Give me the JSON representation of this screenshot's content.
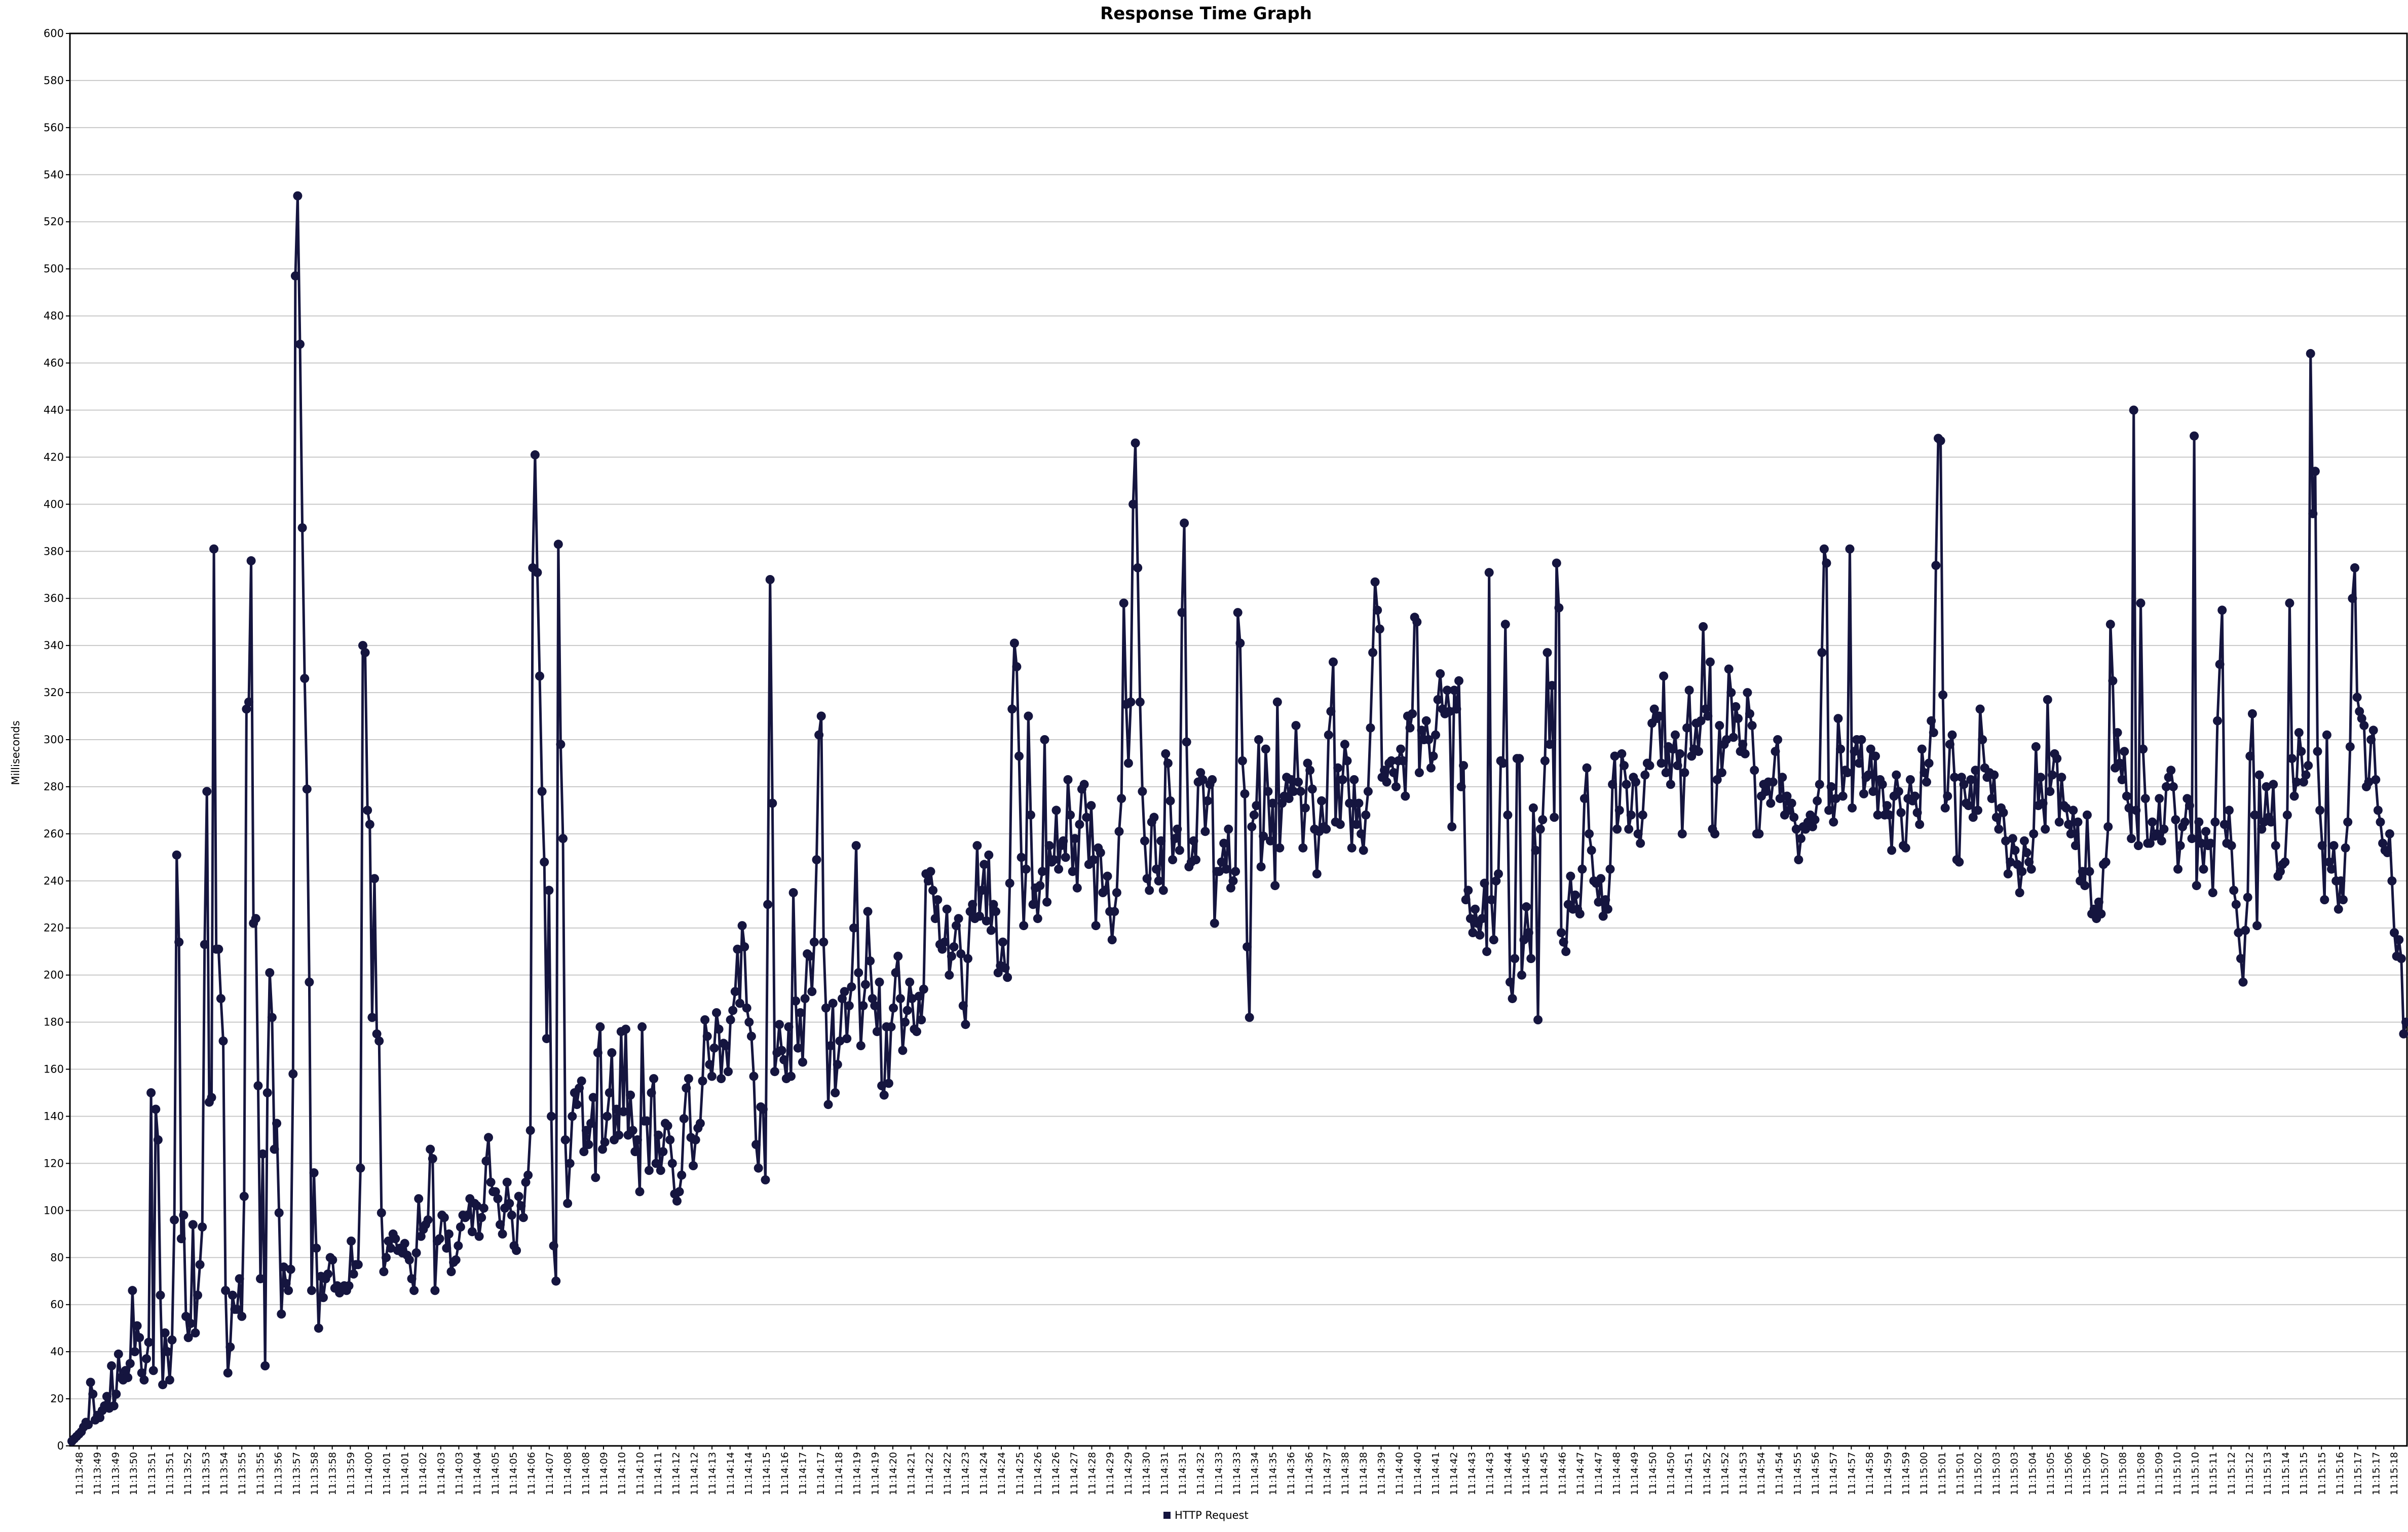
{
  "chart_data": {
    "type": "line",
    "title": "Response Time Graph",
    "ylabel": "Milliseconds",
    "xlabel": "",
    "ylim": [
      0,
      600
    ],
    "ytick_step": 20,
    "grid": true,
    "legend_position": "bottom-center",
    "series_color": "#15153f",
    "x_ticks": [
      "11:13:48",
      "11:13:49",
      "11:13:49",
      "11:13:50",
      "11:13:51",
      "11:13:51",
      "11:13:52",
      "11:13:53",
      "11:13:54",
      "11:13:55",
      "11:13:55",
      "11:13:56",
      "11:13:57",
      "11:13:58",
      "11:13:58",
      "11:13:59",
      "11:14:00",
      "11:14:01",
      "11:14:01",
      "11:14:02",
      "11:14:03",
      "11:14:03",
      "11:14:04",
      "11:14:05",
      "11:14:05",
      "11:14:06",
      "11:14:07",
      "11:14:08",
      "11:14:08",
      "11:14:09",
      "11:14:10",
      "11:14:10",
      "11:14:11",
      "11:14:12",
      "11:14:12",
      "11:14:13",
      "11:14:14",
      "11:14:14",
      "11:14:15",
      "11:14:16",
      "11:14:17",
      "11:14:17",
      "11:14:18",
      "11:14:19",
      "11:14:19",
      "11:14:20",
      "11:14:21",
      "11:14:22",
      "11:14:22",
      "11:14:23",
      "11:14:24",
      "11:14:24",
      "11:14:25",
      "11:14:26",
      "11:14:26",
      "11:14:27",
      "11:14:28",
      "11:14:29",
      "11:14:29",
      "11:14:30",
      "11:14:31",
      "11:14:31",
      "11:14:32",
      "11:14:33",
      "11:14:33",
      "11:14:34",
      "11:14:35",
      "11:14:36",
      "11:14:36",
      "11:14:37",
      "11:14:38",
      "11:14:38",
      "11:14:39",
      "11:14:40",
      "11:14:40",
      "11:14:41",
      "11:14:42",
      "11:14:43",
      "11:14:43",
      "11:14:44",
      "11:14:45",
      "11:14:45",
      "11:14:46",
      "11:14:47",
      "11:14:47",
      "11:14:48",
      "11:14:49",
      "11:14:50",
      "11:14:50",
      "11:14:51",
      "11:14:52",
      "11:14:52",
      "11:14:53",
      "11:14:54",
      "11:14:54",
      "11:14:55",
      "11:14:56",
      "11:14:57",
      "11:14:57",
      "11:14:58",
      "11:14:59",
      "11:14:59",
      "11:15:00",
      "11:15:01",
      "11:15:01",
      "11:15:02",
      "11:15:03",
      "11:15:03",
      "11:15:04",
      "11:15:05",
      "11:15:06",
      "11:15:06",
      "11:15:07",
      "11:15:08",
      "11:15:08",
      "11:15:09",
      "11:15:10",
      "11:15:10",
      "11:15:11",
      "11:15:12",
      "11:15:12",
      "11:15:13",
      "11:15:14",
      "11:15:15",
      "11:15:15",
      "11:15:16",
      "11:15:17",
      "11:15:17",
      "11:15:18"
    ],
    "series": [
      {
        "name": "HTTP Request",
        "values": [
          2,
          3,
          4,
          5,
          6,
          8,
          10,
          9,
          27,
          22,
          11,
          13,
          12,
          15,
          17,
          21,
          16,
          34,
          17,
          22,
          39,
          29,
          28,
          32,
          29,
          35,
          66,
          40,
          51,
          46,
          31,
          28,
          37,
          44,
          150,
          32,
          143,
          130,
          64,
          26,
          48,
          40,
          28,
          45,
          96,
          251,
          214,
          88,
          98,
          55,
          46,
          52,
          94,
          48,
          64,
          77,
          93,
          213,
          278,
          146,
          148,
          381,
          211,
          211,
          190,
          172,
          66,
          31,
          42,
          64,
          58,
          58,
          71,
          55,
          106,
          313,
          316,
          376,
          222,
          224,
          153,
          71,
          124,
          34,
          150,
          201,
          182,
          126,
          137,
          99,
          56,
          76,
          69,
          66,
          75,
          158,
          497,
          531,
          468,
          390,
          326,
          279,
          197,
          66,
          116,
          84,
          50,
          72,
          63,
          71,
          73,
          80,
          79,
          67,
          68,
          65,
          67,
          68,
          66,
          68,
          87,
          73,
          77,
          77,
          118,
          340,
          337,
          270,
          264,
          182,
          241,
          175,
          172,
          99,
          74,
          80,
          87,
          84,
          90,
          88,
          83,
          84,
          82,
          86,
          81,
          79,
          71,
          66,
          82,
          105,
          89,
          92,
          94,
          96,
          126,
          122,
          66,
          87,
          88,
          98,
          97,
          84,
          90,
          74,
          78,
          79,
          85,
          93,
          98,
          97,
          98,
          105,
          91,
          103,
          102,
          89,
          97,
          101,
          121,
          131,
          112,
          108,
          108,
          105,
          94,
          90,
          101,
          112,
          103,
          98,
          85,
          83,
          106,
          102,
          97,
          112,
          115,
          134,
          373,
          421,
          371,
          327,
          278,
          248,
          173,
          236,
          140,
          85,
          70,
          383,
          298,
          258,
          130,
          103,
          120,
          140,
          150,
          145,
          152,
          155,
          125,
          134,
          128,
          137,
          148,
          114,
          167,
          178,
          126,
          129,
          140,
          150,
          167,
          130,
          143,
          132,
          176,
          142,
          177,
          132,
          149,
          134,
          125,
          130,
          108,
          178,
          138,
          138,
          117,
          150,
          156,
          120,
          132,
          117,
          125,
          137,
          136,
          130,
          120,
          107,
          104,
          108,
          115,
          139,
          152,
          156,
          131,
          119,
          130,
          135,
          137,
          155,
          181,
          174,
          162,
          157,
          169,
          184,
          177,
          156,
          171,
          170,
          159,
          181,
          185,
          193,
          211,
          188,
          221,
          212,
          186,
          180,
          174,
          157,
          128,
          118,
          144,
          143,
          113,
          230,
          368,
          273,
          159,
          167,
          179,
          168,
          164,
          156,
          178,
          157,
          235,
          189,
          169,
          184,
          163,
          190,
          209,
          208,
          193,
          214,
          249,
          302,
          310,
          214,
          186,
          145,
          170,
          188,
          150,
          162,
          172,
          190,
          193,
          173,
          187,
          195,
          220,
          255,
          201,
          170,
          187,
          196,
          227,
          206,
          190,
          187,
          176,
          197,
          153,
          149,
          178,
          154,
          178,
          186,
          201,
          208,
          190,
          168,
          180,
          185,
          197,
          190,
          177,
          176,
          191,
          181,
          194,
          243,
          240,
          244,
          236,
          224,
          232,
          213,
          211,
          214,
          228,
          200,
          208,
          212,
          221,
          224,
          209,
          187,
          179,
          207,
          227,
          230,
          224,
          255,
          225,
          236,
          247,
          223,
          251,
          219,
          230,
          227,
          201,
          204,
          214,
          203,
          199,
          239,
          313,
          341,
          331,
          293,
          250,
          221,
          245,
          310,
          268,
          230,
          237,
          224,
          238,
          244,
          300,
          231,
          255,
          248,
          249,
          270,
          245,
          255,
          257,
          250,
          283,
          268,
          244,
          258,
          237,
          264,
          279,
          281,
          267,
          247,
          272,
          249,
          221,
          254,
          252,
          235,
          236,
          242,
          227,
          215,
          227,
          235,
          261,
          275,
          358,
          315,
          290,
          316,
          400,
          426,
          373,
          316,
          278,
          257,
          241,
          236,
          265,
          267,
          245,
          240,
          257,
          236,
          294,
          290,
          274,
          249,
          258,
          262,
          253,
          354,
          392,
          299,
          246,
          248,
          257,
          249,
          282,
          286,
          283,
          261,
          274,
          281,
          283,
          222,
          244,
          244,
          248,
          256,
          245,
          262,
          237,
          240,
          244,
          354,
          341,
          291,
          277,
          212,
          182,
          263,
          268,
          272,
          300,
          246,
          259,
          296,
          278,
          257,
          273,
          238,
          316,
          254,
          273,
          276,
          284,
          275,
          283,
          278,
          306,
          282,
          278,
          254,
          271,
          290,
          287,
          279,
          262,
          243,
          261,
          274,
          263,
          262,
          302,
          312,
          333,
          265,
          288,
          264,
          283,
          298,
          291,
          273,
          254,
          283,
          264,
          273,
          260,
          253,
          268,
          278,
          305,
          337,
          367,
          355,
          347,
          284,
          287,
          282,
          290,
          291,
          286,
          280,
          291,
          296,
          291,
          276,
          310,
          305,
          311,
          352,
          350,
          286,
          304,
          300,
          308,
          300,
          288,
          293,
          302,
          317,
          328,
          313,
          311,
          321,
          312,
          263,
          321,
          313,
          325,
          280,
          289,
          232,
          236,
          224,
          218,
          228,
          222,
          217,
          224,
          239,
          210,
          371,
          232,
          215,
          240,
          243,
          291,
          290,
          349,
          268,
          197,
          190,
          207,
          292,
          292,
          200,
          215,
          229,
          218,
          207,
          271,
          253,
          181,
          262,
          266,
          291,
          337,
          298,
          323,
          267,
          375,
          356,
          218,
          214,
          210,
          230,
          242,
          228,
          234,
          228,
          226,
          245,
          275,
          288,
          260,
          253,
          240,
          239,
          231,
          241,
          225,
          232,
          228,
          245,
          281,
          293,
          262,
          270,
          294,
          289,
          281,
          262,
          268,
          284,
          282,
          260,
          256,
          268,
          285,
          290,
          289,
          307,
          313,
          309,
          310,
          290,
          327,
          286,
          297,
          281,
          296,
          302,
          289,
          294,
          260,
          286,
          305,
          321,
          293,
          296,
          307,
          295,
          308,
          348,
          313,
          310,
          333,
          262,
          260,
          283,
          306,
          286,
          298,
          300,
          330,
          320,
          301,
          314,
          309,
          295,
          298,
          294,
          320,
          311,
          306,
          287,
          260,
          260,
          276,
          281,
          278,
          282,
          273,
          282,
          295,
          300,
          275,
          284,
          268,
          276,
          270,
          273,
          267,
          262,
          249,
          258,
          263,
          262,
          265,
          268,
          263,
          266,
          274,
          281,
          337,
          381,
          375,
          270,
          280,
          265,
          275,
          309,
          296,
          276,
          287,
          286,
          381,
          271,
          295,
          300,
          290,
          300,
          277,
          284,
          285,
          296,
          278,
          293,
          268,
          283,
          281,
          268,
          272,
          268,
          253,
          276,
          285,
          278,
          269,
          255,
          254,
          275,
          283,
          274,
          276,
          269,
          264,
          296,
          286,
          282,
          290,
          308,
          303,
          374,
          428,
          427,
          319,
          271,
          276,
          298,
          302,
          284,
          249,
          248,
          284,
          281,
          273,
          272,
          283,
          267,
          287,
          270,
          313,
          300,
          288,
          284,
          286,
          275,
          285,
          267,
          262,
          271,
          269,
          257,
          243,
          248,
          258,
          253,
          247,
          235,
          244,
          257,
          252,
          248,
          245,
          260,
          297,
          272,
          284,
          273,
          262,
          317,
          278,
          285,
          294,
          292,
          265,
          284,
          272,
          271,
          264,
          260,
          270,
          255,
          265,
          240,
          244,
          238,
          268,
          244,
          226,
          228,
          224,
          231,
          226,
          247,
          248,
          263,
          349,
          325,
          288,
          303,
          290,
          283,
          295,
          276,
          271,
          258,
          440,
          270,
          255,
          358,
          296,
          275,
          256,
          256,
          265,
          259,
          260,
          275,
          257,
          262,
          280,
          284,
          287,
          280,
          266,
          245,
          255,
          263,
          265,
          275,
          272,
          258,
          429,
          238,
          265,
          256,
          245,
          261,
          255,
          256,
          235,
          265,
          308,
          332,
          355,
          264,
          256,
          270,
          255,
          236,
          230,
          218,
          207,
          197,
          219,
          233,
          293,
          311,
          268,
          221,
          285,
          262,
          265,
          280,
          267,
          265,
          281,
          255,
          242,
          244,
          247,
          248,
          268,
          358,
          292,
          276,
          282,
          303,
          295,
          282,
          285,
          289,
          464,
          396,
          414,
          295,
          270,
          255,
          232,
          302,
          248,
          245,
          255,
          240,
          228,
          240,
          232,
          254,
          265,
          297,
          360,
          373,
          318,
          312,
          309,
          306,
          280,
          282,
          300,
          304,
          283,
          270,
          265,
          256,
          253,
          252,
          260,
          240,
          218,
          208,
          215,
          207,
          175,
          180
        ]
      }
    ]
  }
}
